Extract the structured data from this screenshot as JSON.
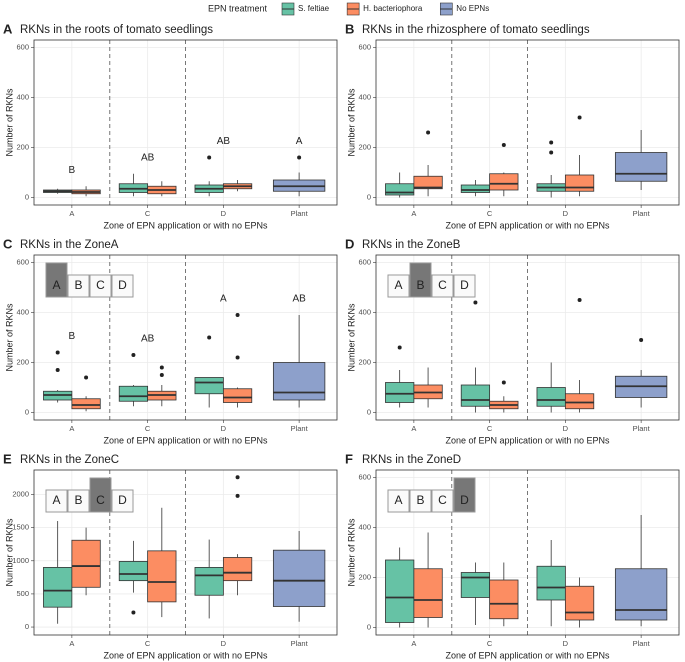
{
  "legend": {
    "title": "EPN treatment",
    "position": "top"
  },
  "chart_data": [
    {
      "type": "box",
      "panel": "A",
      "title": "RKNs in the roots of tomato seedlings",
      "xlabel": "Zone of EPN application or with no EPNs",
      "ylabel": "Number of RKNs",
      "categories": [
        "A",
        "C",
        "D",
        "Plant"
      ],
      "ylim": [
        -30,
        630
      ],
      "yticks": [
        0,
        200,
        400,
        600
      ],
      "grid": true,
      "annotations": [
        "B",
        "AB",
        "AB",
        "A"
      ],
      "series": [
        {
          "name": "S. feltiae",
          "color": "#66c2a5",
          "values": [
            {
              "min": 15,
              "q1": 20,
              "median": 25,
              "q3": 30,
              "max": 35
            },
            {
              "min": 5,
              "q1": 20,
              "median": 35,
              "q3": 55,
              "max": 95
            },
            {
              "min": 5,
              "q1": 20,
              "median": 35,
              "q3": 50,
              "max": 65,
              "outliers": [
                160
              ]
            },
            null
          ]
        },
        {
          "name": "H. bacteriophora",
          "color": "#fc8d62",
          "values": [
            {
              "min": 5,
              "q1": 15,
              "median": 22,
              "q3": 30,
              "max": 45
            },
            {
              "min": 5,
              "q1": 15,
              "median": 30,
              "q3": 45,
              "max": 65
            },
            {
              "min": 25,
              "q1": 35,
              "median": 45,
              "q3": 55,
              "max": 70
            },
            null
          ]
        },
        {
          "name": "No EPNs",
          "color": "#8da0cb",
          "values": [
            null,
            null,
            null,
            {
              "min": 5,
              "q1": 25,
              "median": 45,
              "q3": 70,
              "max": 100,
              "outliers": [
                160
              ]
            }
          ]
        }
      ]
    },
    {
      "type": "box",
      "panel": "B",
      "title": "RKNs in the rhizosphere of tomato seedlings",
      "xlabel": "Zone of EPN application or with no EPNs",
      "ylabel": "Number of RKNs",
      "categories": [
        "A",
        "C",
        "D",
        "Plant"
      ],
      "ylim": [
        -30,
        630
      ],
      "yticks": [
        0,
        200,
        400,
        600
      ],
      "grid": true,
      "series": [
        {
          "name": "S. feltiae",
          "color": "#66c2a5",
          "values": [
            {
              "min": 0,
              "q1": 10,
              "median": 20,
              "q3": 55,
              "max": 100
            },
            {
              "min": 5,
              "q1": 20,
              "median": 30,
              "q3": 50,
              "max": 70
            },
            {
              "min": 0,
              "q1": 25,
              "median": 40,
              "q3": 55,
              "max": 90,
              "outliers": [
                180,
                220
              ]
            },
            null
          ]
        },
        {
          "name": "H. bacteriophora",
          "color": "#fc8d62",
          "values": [
            {
              "min": 5,
              "q1": 35,
              "median": 40,
              "q3": 85,
              "max": 130,
              "outliers": [
                260
              ]
            },
            {
              "min": 5,
              "q1": 30,
              "median": 55,
              "q3": 95,
              "max": 100,
              "outliers": [
                210
              ]
            },
            {
              "min": 5,
              "q1": 25,
              "median": 40,
              "q3": 90,
              "max": 170,
              "outliers": [
                320
              ]
            },
            null
          ]
        },
        {
          "name": "No EPNs",
          "color": "#8da0cb",
          "values": [
            null,
            null,
            null,
            {
              "min": 30,
              "q1": 65,
              "median": 95,
              "q3": 180,
              "max": 270
            }
          ]
        }
      ]
    },
    {
      "type": "box",
      "panel": "C",
      "title": "RKNs in the ZoneA",
      "xlabel": "Zone of EPN application or with no EPNs",
      "ylabel": "Number of RKNs",
      "categories": [
        "A",
        "C",
        "D",
        "Plant"
      ],
      "ylim": [
        -30,
        630
      ],
      "yticks": [
        0,
        200,
        400,
        600
      ],
      "grid": true,
      "zones": [
        "A",
        "B",
        "C",
        "D"
      ],
      "zone_highlight": 0,
      "annotations": [
        "B",
        "AB",
        "A",
        "AB"
      ],
      "series": [
        {
          "name": "S. feltiae",
          "color": "#66c2a5",
          "values": [
            {
              "min": 40,
              "q1": 50,
              "median": 70,
              "q3": 85,
              "max": 90,
              "outliers": [
                170,
                240
              ]
            },
            {
              "min": 25,
              "q1": 45,
              "median": 65,
              "q3": 105,
              "max": 110,
              "outliers": [
                230
              ]
            },
            {
              "min": 20,
              "q1": 75,
              "median": 120,
              "q3": 140,
              "max": 140,
              "outliers": [
                300
              ]
            },
            null
          ]
        },
        {
          "name": "H. bacteriophora",
          "color": "#fc8d62",
          "values": [
            {
              "min": 5,
              "q1": 15,
              "median": 30,
              "q3": 55,
              "max": 65,
              "outliers": [
                140
              ]
            },
            {
              "min": 25,
              "q1": 50,
              "median": 70,
              "q3": 85,
              "max": 110,
              "outliers": [
                150,
                180
              ]
            },
            {
              "min": 20,
              "q1": 40,
              "median": 60,
              "q3": 95,
              "max": 100,
              "outliers": [
                220,
                390
              ]
            },
            null
          ]
        },
        {
          "name": "No EPNs",
          "color": "#8da0cb",
          "values": [
            null,
            null,
            null,
            {
              "min": 20,
              "q1": 50,
              "median": 80,
              "q3": 200,
              "max": 390
            }
          ]
        }
      ]
    },
    {
      "type": "box",
      "panel": "D",
      "title": "RKNs in the ZoneB",
      "xlabel": "Zone of EPN application or with no EPNs",
      "ylabel": "Number of RKNs",
      "categories": [
        "A",
        "C",
        "D",
        "Plant"
      ],
      "ylim": [
        -30,
        630
      ],
      "yticks": [
        0,
        200,
        400,
        600
      ],
      "grid": true,
      "zones": [
        "A",
        "B",
        "C",
        "D"
      ],
      "zone_highlight": 1,
      "series": [
        {
          "name": "S. feltiae",
          "color": "#66c2a5",
          "values": [
            {
              "min": 20,
              "q1": 40,
              "median": 75,
              "q3": 120,
              "max": 170,
              "outliers": [
                260
              ]
            },
            {
              "min": 0,
              "q1": 25,
              "median": 50,
              "q3": 110,
              "max": 180,
              "outliers": [
                440
              ]
            },
            {
              "min": 0,
              "q1": 25,
              "median": 50,
              "q3": 100,
              "max": 200
            },
            null
          ]
        },
        {
          "name": "H. bacteriophora",
          "color": "#fc8d62",
          "values": [
            {
              "min": 20,
              "q1": 55,
              "median": 80,
              "q3": 110,
              "max": 180
            },
            {
              "min": 0,
              "q1": 15,
              "median": 30,
              "q3": 45,
              "max": 65,
              "outliers": [
                120
              ]
            },
            {
              "min": 0,
              "q1": 15,
              "median": 40,
              "q3": 75,
              "max": 130,
              "outliers": [
                450
              ]
            },
            null
          ]
        },
        {
          "name": "No EPNs",
          "color": "#8da0cb",
          "values": [
            null,
            null,
            null,
            {
              "min": 20,
              "q1": 60,
              "median": 105,
              "q3": 145,
              "max": 170,
              "outliers": [
                290
              ]
            }
          ]
        }
      ]
    },
    {
      "type": "box",
      "panel": "E",
      "title": "RKNs in the ZoneC",
      "xlabel": "Zone of EPN application or with no EPNs",
      "ylabel": "Number of RKNs",
      "categories": [
        "A",
        "C",
        "D",
        "Plant"
      ],
      "ylim": [
        -120,
        2370
      ],
      "yticks": [
        0,
        500,
        1000,
        1500,
        2000
      ],
      "grid": true,
      "zones": [
        "A",
        "B",
        "C",
        "D"
      ],
      "zone_highlight": 2,
      "series": [
        {
          "name": "S. feltiae",
          "color": "#66c2a5",
          "values": [
            {
              "min": 50,
              "q1": 300,
              "median": 550,
              "q3": 900,
              "max": 1600
            },
            {
              "min": 520,
              "q1": 700,
              "median": 800,
              "q3": 990,
              "max": 1300,
              "outliers": [
                220
              ]
            },
            {
              "min": 130,
              "q1": 480,
              "median": 780,
              "q3": 900,
              "max": 1320
            },
            null
          ]
        },
        {
          "name": "H. bacteriophora",
          "color": "#fc8d62",
          "values": [
            {
              "min": 480,
              "q1": 600,
              "median": 920,
              "q3": 1310,
              "max": 1500
            },
            {
              "min": 150,
              "q1": 380,
              "median": 680,
              "q3": 1150,
              "max": 1800
            },
            {
              "min": 480,
              "q1": 700,
              "median": 820,
              "q3": 1050,
              "max": 1100,
              "outliers": [
                1980,
                2260
              ]
            },
            null
          ]
        },
        {
          "name": "No EPNs",
          "color": "#8da0cb",
          "values": [
            null,
            null,
            null,
            {
              "min": 80,
              "q1": 310,
              "median": 700,
              "q3": 1160,
              "max": 1450
            }
          ]
        }
      ]
    },
    {
      "type": "box",
      "panel": "F",
      "title": "RKNs in the ZoneD",
      "xlabel": "Zone of EPN application or with no EPNs",
      "ylabel": "Number of RKNs",
      "categories": [
        "A",
        "C",
        "D",
        "Plant"
      ],
      "ylim": [
        -30,
        630
      ],
      "yticks": [
        0,
        200,
        400,
        600
      ],
      "grid": true,
      "zones": [
        "A",
        "B",
        "C",
        "D"
      ],
      "zone_highlight": 3,
      "series": [
        {
          "name": "S. feltiae",
          "color": "#66c2a5",
          "values": [
            {
              "min": 0,
              "q1": 20,
              "median": 120,
              "q3": 270,
              "max": 320
            },
            {
              "min": 10,
              "q1": 120,
              "median": 200,
              "q3": 220,
              "max": 260
            },
            {
              "min": 5,
              "q1": 110,
              "median": 160,
              "q3": 245,
              "max": 350
            },
            null
          ]
        },
        {
          "name": "H. bacteriophora",
          "color": "#fc8d62",
          "values": [
            {
              "min": 0,
              "q1": 40,
              "median": 110,
              "q3": 235,
              "max": 380
            },
            {
              "min": 5,
              "q1": 35,
              "median": 95,
              "q3": 190,
              "max": 260
            },
            {
              "min": 0,
              "q1": 30,
              "median": 60,
              "q3": 165,
              "max": 200
            },
            null
          ]
        },
        {
          "name": "No EPNs",
          "color": "#8da0cb",
          "values": [
            null,
            null,
            null,
            {
              "min": 5,
              "q1": 30,
              "median": 70,
              "q3": 235,
              "max": 450
            }
          ]
        }
      ]
    }
  ]
}
